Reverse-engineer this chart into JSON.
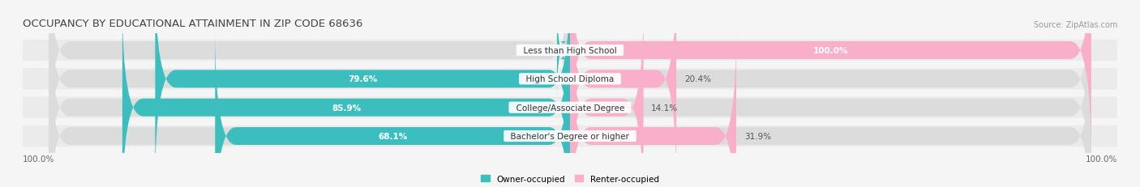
{
  "title": "OCCUPANCY BY EDUCATIONAL ATTAINMENT IN ZIP CODE 68636",
  "source": "Source: ZipAtlas.com",
  "categories": [
    "Less than High School",
    "High School Diploma",
    "College/Associate Degree",
    "Bachelor's Degree or higher"
  ],
  "owner_pct": [
    0.0,
    79.6,
    85.9,
    68.1
  ],
  "renter_pct": [
    100.0,
    20.4,
    14.1,
    31.9
  ],
  "owner_color": "#3dbebe",
  "renter_color": "#f9aeca",
  "bg_color": "#f5f5f5",
  "row_bg_color": "#ebebeb",
  "title_fontsize": 9.5,
  "source_fontsize": 7,
  "label_fontsize": 7.5,
  "cat_fontsize": 7.5,
  "bar_height": 0.62,
  "axis_label_left": "100.0%",
  "axis_label_right": "100.0%"
}
